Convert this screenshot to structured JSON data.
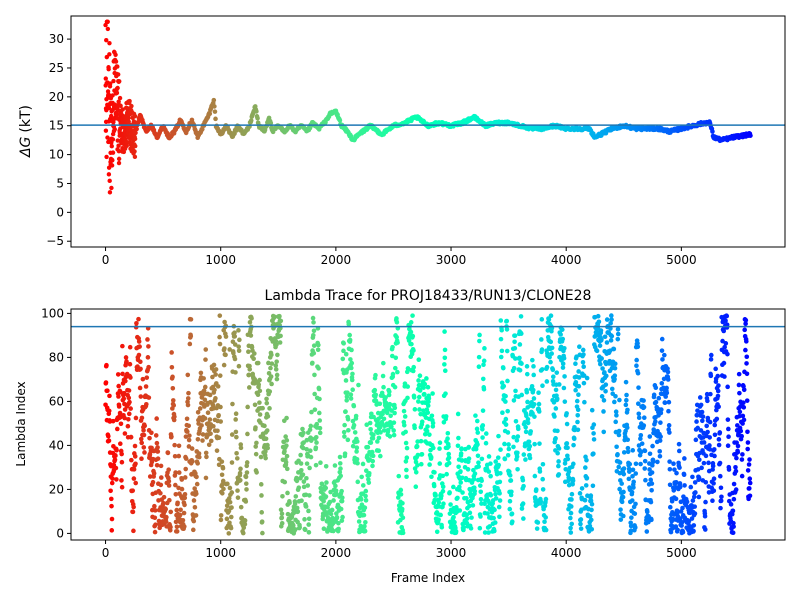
{
  "chart_data": [
    {
      "type": "scatter",
      "title": "",
      "xlabel": "",
      "ylabel": "ΔG (kT)",
      "ylabel_symbol": "ΔG",
      "ylabel_unit": "(kT)",
      "xlim": [
        -300,
        5900
      ],
      "ylim": [
        -6,
        34
      ],
      "xticks": [
        0,
        1000,
        2000,
        3000,
        4000,
        5000
      ],
      "xtick_labels": [
        "0",
        "1000",
        "2000",
        "3000",
        "4000",
        "5000"
      ],
      "yticks": [
        -5,
        0,
        5,
        10,
        15,
        20,
        25,
        30
      ],
      "ytick_labels": [
        "−5",
        "0",
        "5",
        "10",
        "15",
        "20",
        "25",
        "30"
      ],
      "hline": 15.1,
      "hline_color": "#1f77b4",
      "colormap": "rainbow_r",
      "n_frames": 5600,
      "trace_points": [
        [
          0,
          20
        ],
        [
          20,
          25
        ],
        [
          50,
          10
        ],
        [
          80,
          22
        ],
        [
          110,
          17
        ],
        [
          150,
          14
        ],
        [
          200,
          16
        ],
        [
          250,
          13
        ],
        [
          300,
          17
        ],
        [
          350,
          14
        ],
        [
          400,
          15
        ],
        [
          450,
          13
        ],
        [
          500,
          15
        ],
        [
          550,
          13
        ],
        [
          600,
          14
        ],
        [
          650,
          16
        ],
        [
          700,
          14
        ],
        [
          750,
          16
        ],
        [
          800,
          13
        ],
        [
          850,
          15
        ],
        [
          900,
          17
        ],
        [
          940,
          19.5
        ],
        [
          960,
          15
        ],
        [
          1000,
          13.5
        ],
        [
          1050,
          15
        ],
        [
          1100,
          13
        ],
        [
          1150,
          15
        ],
        [
          1200,
          13.5
        ],
        [
          1250,
          15
        ],
        [
          1300,
          18.5
        ],
        [
          1330,
          15
        ],
        [
          1380,
          14
        ],
        [
          1420,
          16.5
        ],
        [
          1450,
          14
        ],
        [
          1500,
          15
        ],
        [
          1550,
          14
        ],
        [
          1600,
          15
        ],
        [
          1650,
          14
        ],
        [
          1700,
          15
        ],
        [
          1750,
          14
        ],
        [
          1800,
          15.5
        ],
        [
          1850,
          14.5
        ],
        [
          1900,
          15.5
        ],
        [
          1950,
          17
        ],
        [
          2000,
          17.5
        ],
        [
          2050,
          15
        ],
        [
          2100,
          14
        ],
        [
          2150,
          12.5
        ],
        [
          2200,
          13.5
        ],
        [
          2300,
          15
        ],
        [
          2400,
          13.5
        ],
        [
          2500,
          15
        ],
        [
          2600,
          15.5
        ],
        [
          2700,
          16.5
        ],
        [
          2800,
          15
        ],
        [
          2900,
          15.5
        ],
        [
          3000,
          15
        ],
        [
          3100,
          15.5
        ],
        [
          3200,
          16.5
        ],
        [
          3300,
          15
        ],
        [
          3400,
          15.5
        ],
        [
          3500,
          15.5
        ],
        [
          3600,
          15
        ],
        [
          3700,
          14.5
        ],
        [
          3800,
          14.5
        ],
        [
          3900,
          15
        ],
        [
          4000,
          14.5
        ],
        [
          4100,
          14.5
        ],
        [
          4200,
          14.5
        ],
        [
          4250,
          13
        ],
        [
          4300,
          13.5
        ],
        [
          4400,
          14.5
        ],
        [
          4500,
          15
        ],
        [
          4600,
          14.5
        ],
        [
          4700,
          14.5
        ],
        [
          4800,
          14.5
        ],
        [
          4900,
          14
        ],
        [
          5000,
          14.5
        ],
        [
          5100,
          15
        ],
        [
          5200,
          15.5
        ],
        [
          5250,
          15.5
        ],
        [
          5280,
          13
        ],
        [
          5350,
          12.5
        ],
        [
          5450,
          13
        ],
        [
          5600,
          13.5
        ]
      ]
    },
    {
      "type": "scatter",
      "title": "Lambda Trace for PROJ18433/RUN13/CLONE28",
      "xlabel": "Frame Index",
      "ylabel": "Lambda Index",
      "xlim": [
        -300,
        5900
      ],
      "ylim": [
        -3,
        102
      ],
      "xticks": [
        0,
        1000,
        2000,
        3000,
        4000,
        5000
      ],
      "xtick_labels": [
        "0",
        "1000",
        "2000",
        "3000",
        "4000",
        "5000"
      ],
      "yticks": [
        0,
        20,
        40,
        60,
        80,
        100
      ],
      "ytick_labels": [
        "0",
        "20",
        "40",
        "60",
        "80",
        "100"
      ],
      "hline": 94,
      "hline_color": "#1f77b4",
      "colormap": "rainbow_r",
      "n_frames": 5600,
      "lambda_range": [
        0,
        99
      ]
    }
  ]
}
